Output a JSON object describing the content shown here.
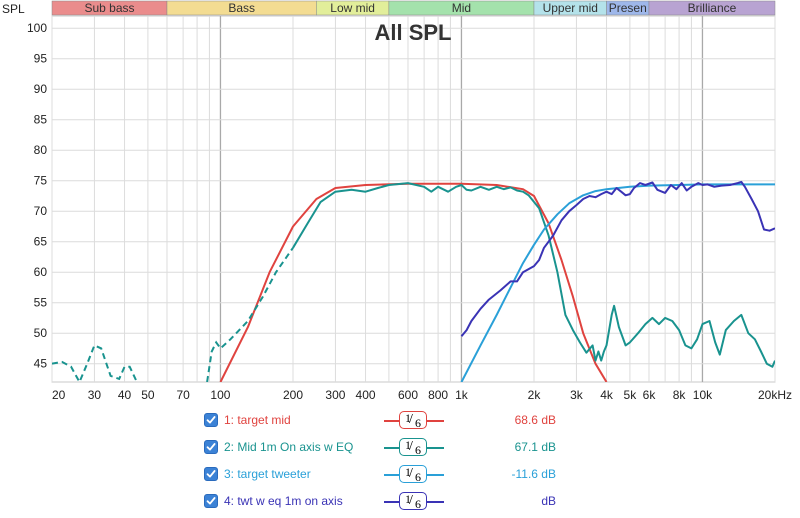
{
  "chart_data": {
    "type": "line",
    "title": "All SPL",
    "ylabel": "SPL",
    "x_scale": "log",
    "xlim": [
      20,
      20000
    ],
    "ylim": [
      42,
      102
    ],
    "y_ticks": [
      "45",
      "50",
      "55",
      "60",
      "65",
      "70",
      "75",
      "80",
      "85",
      "90",
      "95",
      "100"
    ],
    "x_ticks": [
      "20",
      "30",
      "40",
      "50",
      "70",
      "100",
      "200",
      "300",
      "400",
      "600",
      "800",
      "1k",
      "2k",
      "3k",
      "4k",
      "5k",
      "6k",
      "8k",
      "10k",
      "20kHz"
    ],
    "grid": true,
    "bands": [
      {
        "label": "Sub bass",
        "from": 20,
        "to": 60,
        "color": "#ea8c8c"
      },
      {
        "label": "Bass",
        "from": 60,
        "to": 250,
        "color": "#f3dc92"
      },
      {
        "label": "Low mid",
        "from": 250,
        "to": 500,
        "color": "#e2ee9a"
      },
      {
        "label": "Mid",
        "from": 500,
        "to": 2000,
        "color": "#a4e2ac"
      },
      {
        "label": "Upper mid",
        "from": 2000,
        "to": 4000,
        "color": "#b4e2ea"
      },
      {
        "label": "Presen",
        "from": 4000,
        "to": 6000,
        "color": "#9eb7ea"
      },
      {
        "label": "Brilliance",
        "from": 6000,
        "to": 20000,
        "color": "#b8a3d2"
      }
    ],
    "series": [
      {
        "name": "1: target mid",
        "color": "#e0433f",
        "value": "68.6 dB",
        "smoothing": "1/6",
        "dashed_below": 0,
        "points": [
          [
            100,
            42
          ],
          [
            130,
            51
          ],
          [
            160,
            60
          ],
          [
            200,
            67.5
          ],
          [
            250,
            72
          ],
          [
            300,
            73.8
          ],
          [
            400,
            74.3
          ],
          [
            600,
            74.5
          ],
          [
            1000,
            74.5
          ],
          [
            1400,
            74.3
          ],
          [
            1800,
            73.6
          ],
          [
            2000,
            72.5
          ],
          [
            2300,
            68
          ],
          [
            2600,
            62
          ],
          [
            2900,
            56
          ],
          [
            3200,
            50
          ],
          [
            3600,
            45
          ],
          [
            4000,
            42
          ]
        ]
      },
      {
        "name": "2: Mid 1m On axis w EQ",
        "color": "#19938f",
        "value": "67.1 dB",
        "smoothing": "1/6",
        "dashed_below": 190,
        "points": [
          [
            20,
            45
          ],
          [
            22,
            45.3
          ],
          [
            24,
            44.5
          ],
          [
            26,
            42
          ],
          [
            28,
            45
          ],
          [
            30,
            48
          ],
          [
            32,
            47.5
          ],
          [
            35,
            43
          ],
          [
            38,
            42.5
          ],
          [
            40,
            44.5
          ],
          [
            42,
            44.5
          ],
          [
            45,
            42
          ],
          [
            88,
            42
          ],
          [
            92,
            47
          ],
          [
            96,
            48.5
          ],
          [
            100,
            47.5
          ],
          [
            110,
            49
          ],
          [
            130,
            52
          ],
          [
            150,
            56
          ],
          [
            170,
            60
          ],
          [
            200,
            64
          ],
          [
            230,
            68
          ],
          [
            260,
            71.5
          ],
          [
            300,
            73.2
          ],
          [
            350,
            73.5
          ],
          [
            400,
            73.2
          ],
          [
            450,
            73.8
          ],
          [
            500,
            74.3
          ],
          [
            600,
            74.6
          ],
          [
            700,
            74
          ],
          [
            750,
            73.2
          ],
          [
            800,
            74
          ],
          [
            880,
            73.2
          ],
          [
            950,
            74
          ],
          [
            1000,
            74.3
          ],
          [
            1050,
            73.5
          ],
          [
            1100,
            73.4
          ],
          [
            1200,
            74
          ],
          [
            1300,
            73.5
          ],
          [
            1400,
            74
          ],
          [
            1500,
            73.6
          ],
          [
            1600,
            73.9
          ],
          [
            1700,
            73.4
          ],
          [
            1800,
            73.2
          ],
          [
            1900,
            72.6
          ],
          [
            2100,
            70.5
          ],
          [
            2300,
            66
          ],
          [
            2500,
            60
          ],
          [
            2700,
            53
          ],
          [
            2900,
            50.5
          ],
          [
            3100,
            48.5
          ],
          [
            3300,
            46.8
          ],
          [
            3500,
            48
          ],
          [
            3600,
            45.5
          ],
          [
            3700,
            47
          ],
          [
            3800,
            45.5
          ],
          [
            3900,
            47
          ],
          [
            4000,
            48
          ],
          [
            4200,
            53
          ],
          [
            4300,
            54.5
          ],
          [
            4500,
            51
          ],
          [
            4800,
            48
          ],
          [
            5000,
            48.5
          ],
          [
            5400,
            50
          ],
          [
            5800,
            51.5
          ],
          [
            6200,
            52.5
          ],
          [
            6600,
            51.5
          ],
          [
            7000,
            52.5
          ],
          [
            7500,
            52
          ],
          [
            8000,
            50.5
          ],
          [
            8500,
            48
          ],
          [
            9000,
            47.5
          ],
          [
            9500,
            49
          ],
          [
            10000,
            51.5
          ],
          [
            10700,
            52
          ],
          [
            11300,
            48.5
          ],
          [
            11800,
            46.5
          ],
          [
            12500,
            50.5
          ],
          [
            13500,
            52
          ],
          [
            14500,
            53
          ],
          [
            15500,
            50
          ],
          [
            16500,
            49
          ],
          [
            17500,
            47
          ],
          [
            18500,
            45
          ],
          [
            19500,
            44.5
          ],
          [
            20000,
            45.5
          ]
        ]
      },
      {
        "name": "3: target tweeter",
        "color": "#2aa0d8",
        "value": "-11.6 dB",
        "smoothing": "1/6",
        "dashed_below": 0,
        "points": [
          [
            1000,
            42
          ],
          [
            1200,
            48
          ],
          [
            1400,
            53
          ],
          [
            1600,
            57.5
          ],
          [
            1800,
            61.5
          ],
          [
            2000,
            64.5
          ],
          [
            2200,
            67
          ],
          [
            2500,
            69.5
          ],
          [
            2800,
            71.3
          ],
          [
            3200,
            72.6
          ],
          [
            3600,
            73.3
          ],
          [
            4000,
            73.6
          ],
          [
            5000,
            74
          ],
          [
            6000,
            74.2
          ],
          [
            8000,
            74.3
          ],
          [
            10000,
            74.4
          ],
          [
            20000,
            74.4
          ]
        ]
      },
      {
        "name": "4: twt w eq 1m on axis",
        "color": "#3a33b5",
        "value": "dB",
        "smoothing": "1/6",
        "dashed_below": 0,
        "points": [
          [
            1000,
            49.5
          ],
          [
            1050,
            50.5
          ],
          [
            1100,
            52
          ],
          [
            1200,
            54
          ],
          [
            1300,
            55.5
          ],
          [
            1450,
            57
          ],
          [
            1600,
            58.5
          ],
          [
            1700,
            58.5
          ],
          [
            1800,
            60
          ],
          [
            1900,
            60.5
          ],
          [
            2000,
            61
          ],
          [
            2100,
            62
          ],
          [
            2200,
            64
          ],
          [
            2400,
            66
          ],
          [
            2600,
            68.5
          ],
          [
            2800,
            70
          ],
          [
            3000,
            71
          ],
          [
            3200,
            72
          ],
          [
            3400,
            72.5
          ],
          [
            3600,
            72.3
          ],
          [
            3800,
            72.8
          ],
          [
            4000,
            73.2
          ],
          [
            4200,
            72.8
          ],
          [
            4400,
            73.8
          ],
          [
            4600,
            73.2
          ],
          [
            4800,
            72.6
          ],
          [
            5000,
            72.8
          ],
          [
            5200,
            73.8
          ],
          [
            5500,
            74.6
          ],
          [
            5800,
            74.3
          ],
          [
            6200,
            74.7
          ],
          [
            6500,
            73.5
          ],
          [
            7000,
            73
          ],
          [
            7400,
            74.3
          ],
          [
            7800,
            73.6
          ],
          [
            8200,
            74.6
          ],
          [
            8600,
            73.4
          ],
          [
            9000,
            74
          ],
          [
            9600,
            74.6
          ],
          [
            10000,
            74.3
          ],
          [
            10500,
            74.4
          ],
          [
            11200,
            74
          ],
          [
            12000,
            74.2
          ],
          [
            13000,
            74.3
          ],
          [
            14000,
            74.6
          ],
          [
            14500,
            74.8
          ],
          [
            15000,
            74
          ],
          [
            16000,
            72
          ],
          [
            17000,
            70
          ],
          [
            18000,
            67
          ],
          [
            19000,
            66.8
          ],
          [
            20000,
            67.2
          ]
        ]
      }
    ]
  }
}
